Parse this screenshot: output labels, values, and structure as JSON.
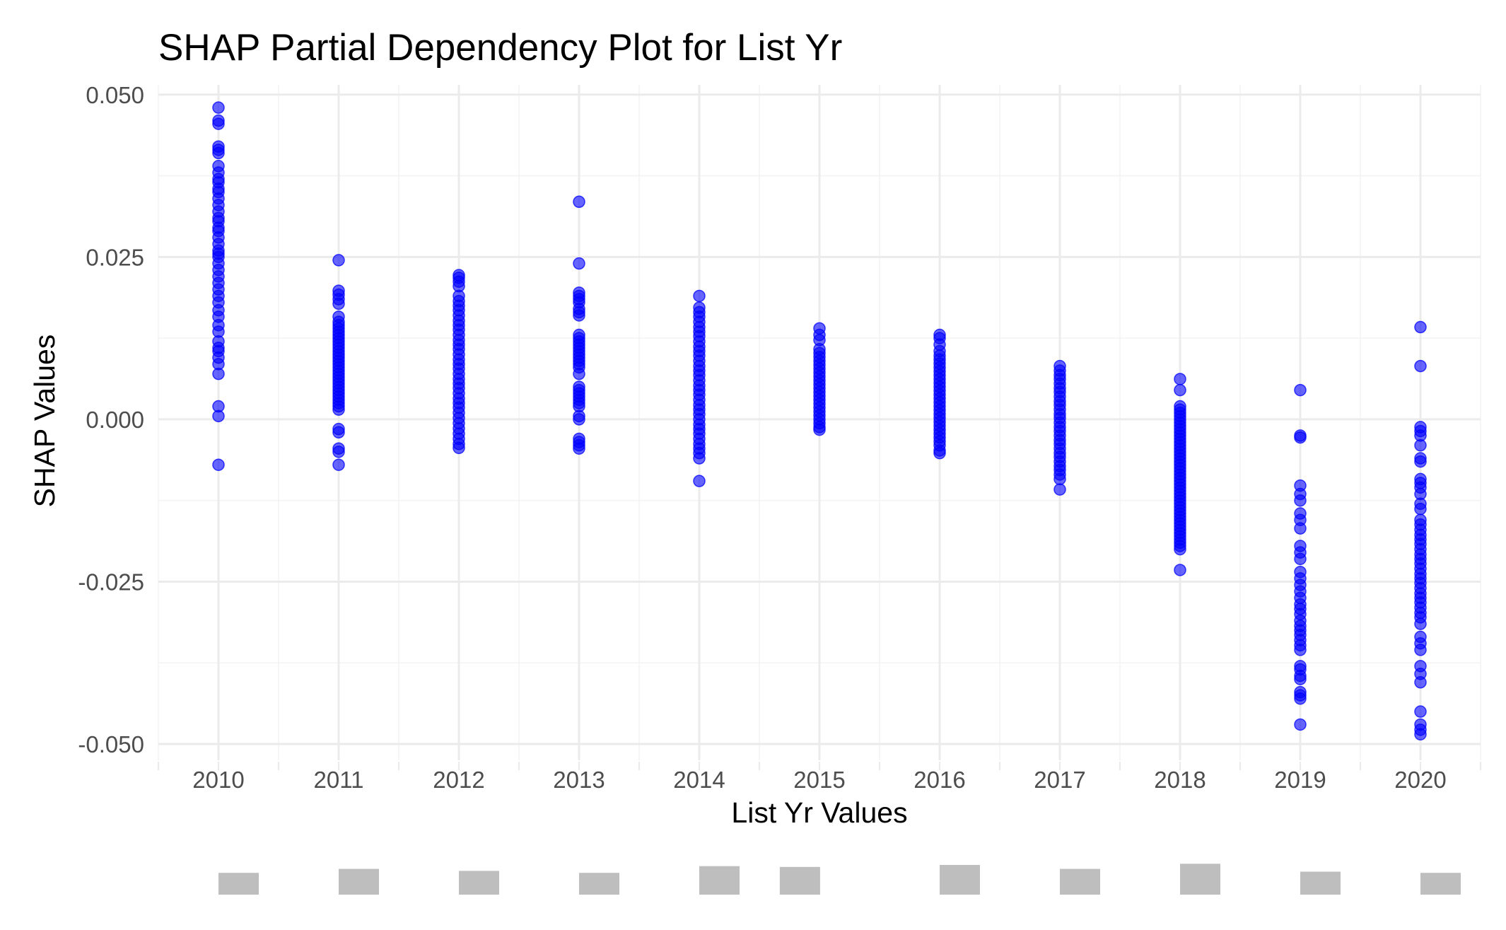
{
  "chart_data": {
    "type": "scatter",
    "title": "SHAP Partial Dependency Plot for List Yr",
    "xlabel": "List Yr Values",
    "ylabel": "SHAP Values",
    "xlim": [
      2009.5,
      2020.5
    ],
    "ylim": [
      -0.0525,
      0.0515
    ],
    "x_ticks": [
      "2010",
      "2011",
      "2012",
      "2013",
      "2014",
      "2015",
      "2016",
      "2017",
      "2018",
      "2019",
      "2020"
    ],
    "y_ticks": [
      "0.050",
      "0.025",
      "0.000",
      "-0.025",
      "-0.050"
    ],
    "grid": true,
    "legend": "none",
    "colors": {
      "points": "#0000ff",
      "histogram": "#bebebe",
      "grid": "#ebebeb"
    },
    "series": [
      {
        "x": 2010,
        "y": [
          0.048,
          0.046,
          0.0455,
          0.042,
          0.0415,
          0.041,
          0.039,
          0.038,
          0.037,
          0.0365,
          0.0355,
          0.035,
          0.034,
          0.033,
          0.032,
          0.031,
          0.0305,
          0.0295,
          0.029,
          0.028,
          0.027,
          0.026,
          0.0255,
          0.025,
          0.024,
          0.023,
          0.022,
          0.021,
          0.02,
          0.019,
          0.018,
          0.0168,
          0.0158,
          0.0145,
          0.0135,
          0.012,
          0.011,
          0.0105,
          0.0095,
          0.0085,
          0.007,
          0.002,
          0.0005,
          -0.007
        ]
      },
      {
        "x": 2011,
        "y": [
          0.0245,
          0.0198,
          0.0192,
          0.0185,
          0.0178,
          0.0158,
          0.015,
          0.0145,
          0.014,
          0.0135,
          0.013,
          0.0125,
          0.012,
          0.0115,
          0.011,
          0.0105,
          0.01,
          0.0095,
          0.009,
          0.0085,
          0.008,
          0.0075,
          0.007,
          0.0065,
          0.006,
          0.0055,
          0.005,
          0.0045,
          0.004,
          0.0035,
          0.003,
          0.0025,
          0.002,
          0.0015,
          -0.0015,
          -0.002,
          -0.0045,
          -0.005,
          -0.007
        ]
      },
      {
        "x": 2012,
        "y": [
          0.0222,
          0.0218,
          0.0212,
          0.0205,
          0.019,
          0.0182,
          0.0175,
          0.0168,
          0.016,
          0.0152,
          0.0145,
          0.0138,
          0.013,
          0.0122,
          0.0115,
          0.0108,
          0.01,
          0.0092,
          0.0085,
          0.0078,
          0.007,
          0.0062,
          0.0055,
          0.0048,
          0.004,
          0.0032,
          0.0025,
          0.0018,
          0.001,
          0.0002,
          -0.0006,
          -0.0014,
          -0.0022,
          -0.003,
          -0.0038,
          -0.0044
        ]
      },
      {
        "x": 2013,
        "y": [
          0.0335,
          0.024,
          0.0195,
          0.019,
          0.0185,
          0.018,
          0.017,
          0.0165,
          0.016,
          0.013,
          0.0125,
          0.012,
          0.0115,
          0.011,
          0.0105,
          0.01,
          0.0095,
          0.009,
          0.0085,
          0.008,
          0.007,
          0.005,
          0.0045,
          0.004,
          0.0035,
          0.003,
          0.0025,
          0.002,
          0.0005,
          0.0,
          -0.003,
          -0.0035,
          -0.004,
          -0.0045
        ]
      },
      {
        "x": 2014,
        "y": [
          0.019,
          0.0172,
          0.0165,
          0.0158,
          0.015,
          0.0142,
          0.0135,
          0.0128,
          0.012,
          0.0112,
          0.0105,
          0.0098,
          0.009,
          0.0082,
          0.0075,
          0.0068,
          0.006,
          0.0052,
          0.0045,
          0.0038,
          0.003,
          0.0022,
          0.0015,
          0.0008,
          0.0,
          -0.0008,
          -0.0015,
          -0.0022,
          -0.003,
          -0.0038,
          -0.0045,
          -0.0052,
          -0.006,
          -0.0095
        ]
      },
      {
        "x": 2015,
        "y": [
          0.014,
          0.013,
          0.0122,
          0.0108,
          0.0102,
          0.0096,
          0.009,
          0.0084,
          0.0078,
          0.0072,
          0.0066,
          0.006,
          0.0054,
          0.0048,
          0.0042,
          0.0036,
          0.003,
          0.0024,
          0.0018,
          0.0012,
          0.0006,
          0.0,
          -0.0006,
          -0.0012,
          -0.0016
        ]
      },
      {
        "x": 2016,
        "y": [
          0.013,
          0.0125,
          0.0115,
          0.0105,
          0.0098,
          0.0092,
          0.0086,
          0.008,
          0.0074,
          0.0068,
          0.0062,
          0.0056,
          0.005,
          0.0044,
          0.0038,
          0.0032,
          0.0026,
          0.002,
          0.0014,
          0.0008,
          0.0002,
          -0.0004,
          -0.001,
          -0.0016,
          -0.0022,
          -0.0028,
          -0.0034,
          -0.004,
          -0.0048,
          -0.0052
        ]
      },
      {
        "x": 2017,
        "y": [
          0.0082,
          0.0075,
          0.0068,
          0.0062,
          0.0055,
          0.0048,
          0.0042,
          0.0035,
          0.0028,
          0.0022,
          0.0015,
          0.0008,
          0.0002,
          -0.0005,
          -0.0012,
          -0.0018,
          -0.0025,
          -0.0032,
          -0.0038,
          -0.0045,
          -0.0052,
          -0.0058,
          -0.0065,
          -0.0072,
          -0.0078,
          -0.0085,
          -0.0092,
          -0.0108
        ]
      },
      {
        "x": 2018,
        "y": [
          0.0062,
          0.0045,
          0.002,
          0.0015,
          0.001,
          0.0005,
          0.0,
          -0.0005,
          -0.001,
          -0.0015,
          -0.002,
          -0.0025,
          -0.003,
          -0.0035,
          -0.004,
          -0.0045,
          -0.005,
          -0.0055,
          -0.006,
          -0.0065,
          -0.007,
          -0.0075,
          -0.008,
          -0.0085,
          -0.009,
          -0.0095,
          -0.01,
          -0.0105,
          -0.011,
          -0.0115,
          -0.012,
          -0.0125,
          -0.013,
          -0.0135,
          -0.014,
          -0.0145,
          -0.015,
          -0.0155,
          -0.016,
          -0.0165,
          -0.017,
          -0.0175,
          -0.018,
          -0.0185,
          -0.019,
          -0.0195,
          -0.02,
          -0.0232
        ]
      },
      {
        "x": 2019,
        "y": [
          0.0045,
          -0.0025,
          -0.0028,
          -0.0102,
          -0.0115,
          -0.0125,
          -0.0145,
          -0.0155,
          -0.0168,
          -0.0195,
          -0.0205,
          -0.0215,
          -0.0235,
          -0.0245,
          -0.0255,
          -0.0265,
          -0.0275,
          -0.0285,
          -0.0292,
          -0.03,
          -0.031,
          -0.0318,
          -0.0325,
          -0.0332,
          -0.034,
          -0.0348,
          -0.0355,
          -0.038,
          -0.0385,
          -0.0395,
          -0.04,
          -0.042,
          -0.0425,
          -0.043,
          -0.047
        ]
      },
      {
        "x": 2020,
        "y": [
          0.0142,
          0.0082,
          -0.0012,
          -0.0018,
          -0.0025,
          -0.004,
          -0.006,
          -0.0065,
          -0.0092,
          -0.0098,
          -0.0105,
          -0.0115,
          -0.013,
          -0.0138,
          -0.0155,
          -0.0162,
          -0.017,
          -0.0178,
          -0.0185,
          -0.0192,
          -0.02,
          -0.0208,
          -0.0215,
          -0.0222,
          -0.023,
          -0.0238,
          -0.0245,
          -0.0252,
          -0.026,
          -0.0268,
          -0.0275,
          -0.0282,
          -0.029,
          -0.0298,
          -0.0305,
          -0.0315,
          -0.0335,
          -0.0345,
          -0.0355,
          -0.038,
          -0.0392,
          -0.0405,
          -0.045,
          -0.047,
          -0.0478,
          -0.0485
        ]
      }
    ],
    "histogram": [
      {
        "x": 2010.0,
        "count": 0.55
      },
      {
        "x": 2011.0,
        "count": 0.65
      },
      {
        "x": 2012.0,
        "count": 0.6
      },
      {
        "x": 2013.0,
        "count": 0.55
      },
      {
        "x": 2014.0,
        "count": 0.72
      },
      {
        "x": 2014.67,
        "count": 0.7
      },
      {
        "x": 2016.0,
        "count": 0.75
      },
      {
        "x": 2017.0,
        "count": 0.65
      },
      {
        "x": 2018.0,
        "count": 0.78
      },
      {
        "x": 2019.0,
        "count": 0.58
      },
      {
        "x": 2020.0,
        "count": 0.55
      }
    ]
  }
}
